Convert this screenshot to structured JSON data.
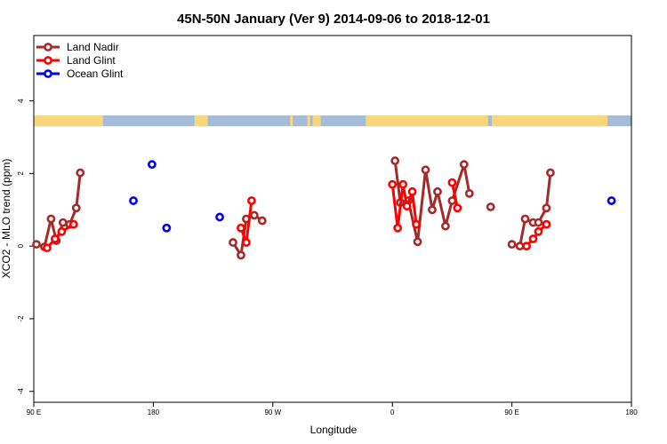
{
  "chart_data": {
    "type": "line",
    "title": "45N-50N January (Ver 9)   2014-09-06 to 2018-12-01",
    "xlabel": "Longitude",
    "ylabel": "XCO2 - MLO trend (ppm)",
    "x_ticks": [
      {
        "value": 90,
        "label": "90 E"
      },
      {
        "value": 180,
        "label": "180"
      },
      {
        "value": 270,
        "label": "90 W"
      },
      {
        "value": 360,
        "label": "0"
      },
      {
        "value": 450,
        "label": "90 E"
      },
      {
        "value": 540,
        "label": "180"
      }
    ],
    "y_ticks": [
      {
        "value": -4,
        "label": "-4"
      },
      {
        "value": -2,
        "label": "-2"
      },
      {
        "value": 0,
        "label": "0"
      },
      {
        "value": 2,
        "label": "2"
      },
      {
        "value": 4,
        "label": "4"
      }
    ],
    "xlim": [
      90,
      540
    ],
    "ylim": [
      -4.3,
      5.8
    ],
    "grid": false,
    "legend_position": "top-left",
    "land_ocean_strip": {
      "y_range": [
        3.3,
        3.6
      ],
      "land_color": "#f8d77c",
      "ocean_color": "#a5bcd9",
      "land_spans": [
        [
          90,
          142
        ],
        [
          211,
          221
        ],
        [
          283,
          285
        ],
        [
          296,
          298
        ],
        [
          300,
          306
        ],
        [
          340,
          432
        ],
        [
          435,
          522
        ]
      ]
    },
    "series": [
      {
        "name": "Land Nadir",
        "color": "#a52a2a",
        "segments": [
          [
            [
              92,
              0.05
            ],
            [
              98,
              -0.02
            ],
            [
              103,
              0.75
            ],
            [
              107,
              0.15
            ],
            [
              112,
              0.65
            ],
            [
              117,
              0.6
            ],
            [
              122,
              1.05
            ],
            [
              125,
              2.02
            ]
          ],
          [
            [
              240,
              0.1
            ],
            [
              246,
              -0.25
            ],
            [
              250,
              0.75
            ],
            [
              256,
              0.85
            ],
            [
              262,
              0.7
            ]
          ],
          [
            [
              362,
              2.35
            ],
            [
              366,
              1.2
            ],
            [
              372,
              1.25
            ],
            [
              379,
              0.12
            ],
            [
              385,
              2.1
            ],
            [
              390,
              1.0
            ],
            [
              394,
              1.5
            ],
            [
              400,
              0.55
            ],
            [
              405,
              1.25
            ],
            [
              414,
              2.25
            ],
            [
              418,
              1.45
            ]
          ],
          [
            [
              434,
              1.08
            ]
          ],
          [
            [
              450,
              0.05
            ],
            [
              456,
              0.0
            ],
            [
              460,
              0.75
            ],
            [
              466,
              0.65
            ],
            [
              470,
              0.65
            ],
            [
              476,
              1.05
            ],
            [
              479,
              2.02
            ]
          ]
        ]
      },
      {
        "name": "Land Glint",
        "color": "#ff0000",
        "segments": [
          [
            [
              100,
              -0.05
            ],
            [
              106,
              0.2
            ],
            [
              111,
              0.4
            ],
            [
              120,
              0.6
            ]
          ],
          [
            [
              246,
              0.5
            ],
            [
              250,
              0.1
            ],
            [
              254,
              1.25
            ]
          ],
          [
            [
              360,
              1.7
            ],
            [
              364,
              0.5
            ],
            [
              368,
              1.7
            ],
            [
              371,
              1.1
            ],
            [
              375,
              1.5
            ],
            [
              378,
              0.6
            ]
          ],
          [
            [
              405,
              1.75
            ],
            [
              409,
              1.05
            ]
          ],
          [
            [
              461,
              0.0
            ],
            [
              466,
              0.2
            ],
            [
              470,
              0.4
            ],
            [
              476,
              0.6
            ]
          ]
        ]
      },
      {
        "name": "Ocean Glint",
        "color": "#0000ee",
        "points": [
          [
            165,
            1.25
          ],
          [
            179,
            2.25
          ],
          [
            190,
            0.5
          ],
          [
            230,
            0.8
          ],
          [
            525,
            1.25
          ]
        ]
      }
    ]
  }
}
